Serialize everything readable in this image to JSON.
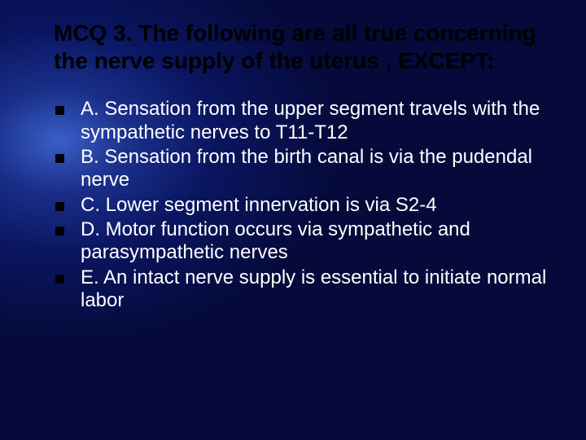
{
  "title": "MCQ 3. The following are all true concerning the nerve supply of the uterus , EXCEPT:",
  "title_fontsize": 28,
  "title_color": "#000000",
  "option_fontsize": 24,
  "option_color": "#ffffff",
  "bullet_color": "#000000",
  "bullet_size": 11,
  "options": [
    {
      "text": "A. Sensation from the upper segment travels with the sympathetic nerves to T11-T12"
    },
    {
      "text": "B. Sensation from the birth canal is via the pudendal nerve"
    },
    {
      "text": "C. Lower segment innervation is via S2-4"
    },
    {
      "text": "D. Motor function occurs via sympathetic and parasympathetic nerves"
    },
    {
      "text": "E. An intact nerve supply is essential to initiate normal labor"
    }
  ],
  "background_gradient": {
    "type": "radial",
    "center": "10% 32%",
    "stops": [
      "#3a5fc8",
      "#1a2f8a",
      "#0a1560",
      "#050a3a"
    ]
  },
  "slide_width": 720,
  "slide_height": 540
}
